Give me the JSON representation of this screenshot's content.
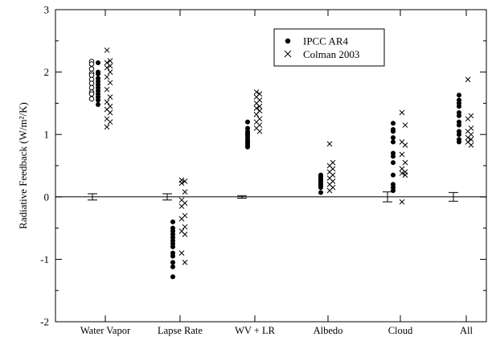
{
  "chart_data": {
    "type": "scatter",
    "title": "",
    "xlabel": "",
    "ylabel": "Radiative Feedback (W/m²/K)",
    "ylim": [
      -2,
      3
    ],
    "y_ticks": [
      "-2",
      "-1",
      "0",
      "1",
      "2",
      "3"
    ],
    "categories": [
      "Water Vapor",
      "Lapse Rate",
      "WV + LR",
      "Albedo",
      "Cloud",
      "All"
    ],
    "legend_position": "top-right",
    "series": [
      {
        "name": "IPCC AR4",
        "marker": "filled-circle",
        "values": [
          [
            2.15,
            2.0,
            1.97,
            1.9,
            1.85,
            1.8,
            1.75,
            1.7,
            1.65,
            1.6,
            1.55,
            1.48
          ],
          [
            -0.4,
            -0.5,
            -0.55,
            -0.6,
            -0.65,
            -0.7,
            -0.75,
            -0.8,
            -0.9,
            -0.95,
            -1.05,
            -1.12,
            -1.28
          ],
          [
            1.2,
            1.1,
            1.05,
            1.02,
            1.0,
            0.97,
            0.93,
            0.9,
            0.88,
            0.85,
            0.82,
            0.8
          ],
          [
            0.35,
            0.32,
            0.3,
            0.28,
            0.25,
            0.22,
            0.2,
            0.17,
            0.15,
            0.07
          ],
          [
            1.18,
            1.08,
            1.05,
            0.95,
            0.88,
            0.7,
            0.65,
            0.55,
            0.35,
            0.2,
            0.15,
            0.1
          ],
          [
            1.63,
            1.55,
            1.5,
            1.45,
            1.35,
            1.3,
            1.2,
            1.15,
            1.05,
            1.0,
            0.92,
            0.88
          ]
        ]
      },
      {
        "name": "",
        "marker": "open-circle",
        "values": [
          [
            2.17,
            2.13,
            2.05,
            1.98,
            1.95,
            1.88,
            1.82,
            1.75,
            1.68,
            1.65,
            1.57
          ],
          [],
          [],
          [],
          [],
          []
        ]
      },
      {
        "name": "Colman 2003",
        "marker": "cross",
        "values": [
          [
            2.35,
            2.18,
            2.15,
            2.1,
            2.07,
            2.0,
            1.92,
            1.83,
            1.72,
            1.6,
            1.52,
            1.45,
            1.4,
            1.35,
            1.25,
            1.2,
            1.12
          ],
          [
            0.27,
            0.25,
            0.22,
            0.08,
            -0.05,
            -0.1,
            -0.15,
            -0.3,
            -0.35,
            -0.48,
            -0.55,
            -0.6,
            -0.9,
            -1.05
          ],
          [
            1.68,
            1.65,
            1.6,
            1.55,
            1.5,
            1.45,
            1.42,
            1.38,
            1.32,
            1.25,
            1.2,
            1.15,
            1.1,
            1.05
          ],
          [
            0.85,
            0.55,
            0.5,
            0.45,
            0.4,
            0.35,
            0.3,
            0.25,
            0.2,
            0.15,
            0.1
          ],
          [
            1.35,
            1.15,
            0.88,
            0.83,
            0.68,
            0.55,
            0.45,
            0.4,
            0.38,
            0.35,
            -0.08
          ],
          [
            1.88,
            1.3,
            1.25,
            1.1,
            1.05,
            1.0,
            0.95,
            0.92,
            0.88,
            0.83
          ]
        ]
      }
    ],
    "error_bars": [
      {
        "category": "Water Vapor",
        "center": 0.0,
        "low": -0.05,
        "high": 0.05
      },
      {
        "category": "Lapse Rate",
        "center": 0.0,
        "low": -0.05,
        "high": 0.05
      },
      {
        "category": "WV + LR",
        "center": 0.0,
        "low": -0.02,
        "high": 0.02
      },
      {
        "category": "Cloud",
        "center": 0.0,
        "low": -0.08,
        "high": 0.08
      },
      {
        "category": "All",
        "center": 0.0,
        "low": -0.07,
        "high": 0.07
      }
    ],
    "zero_line": 0
  }
}
